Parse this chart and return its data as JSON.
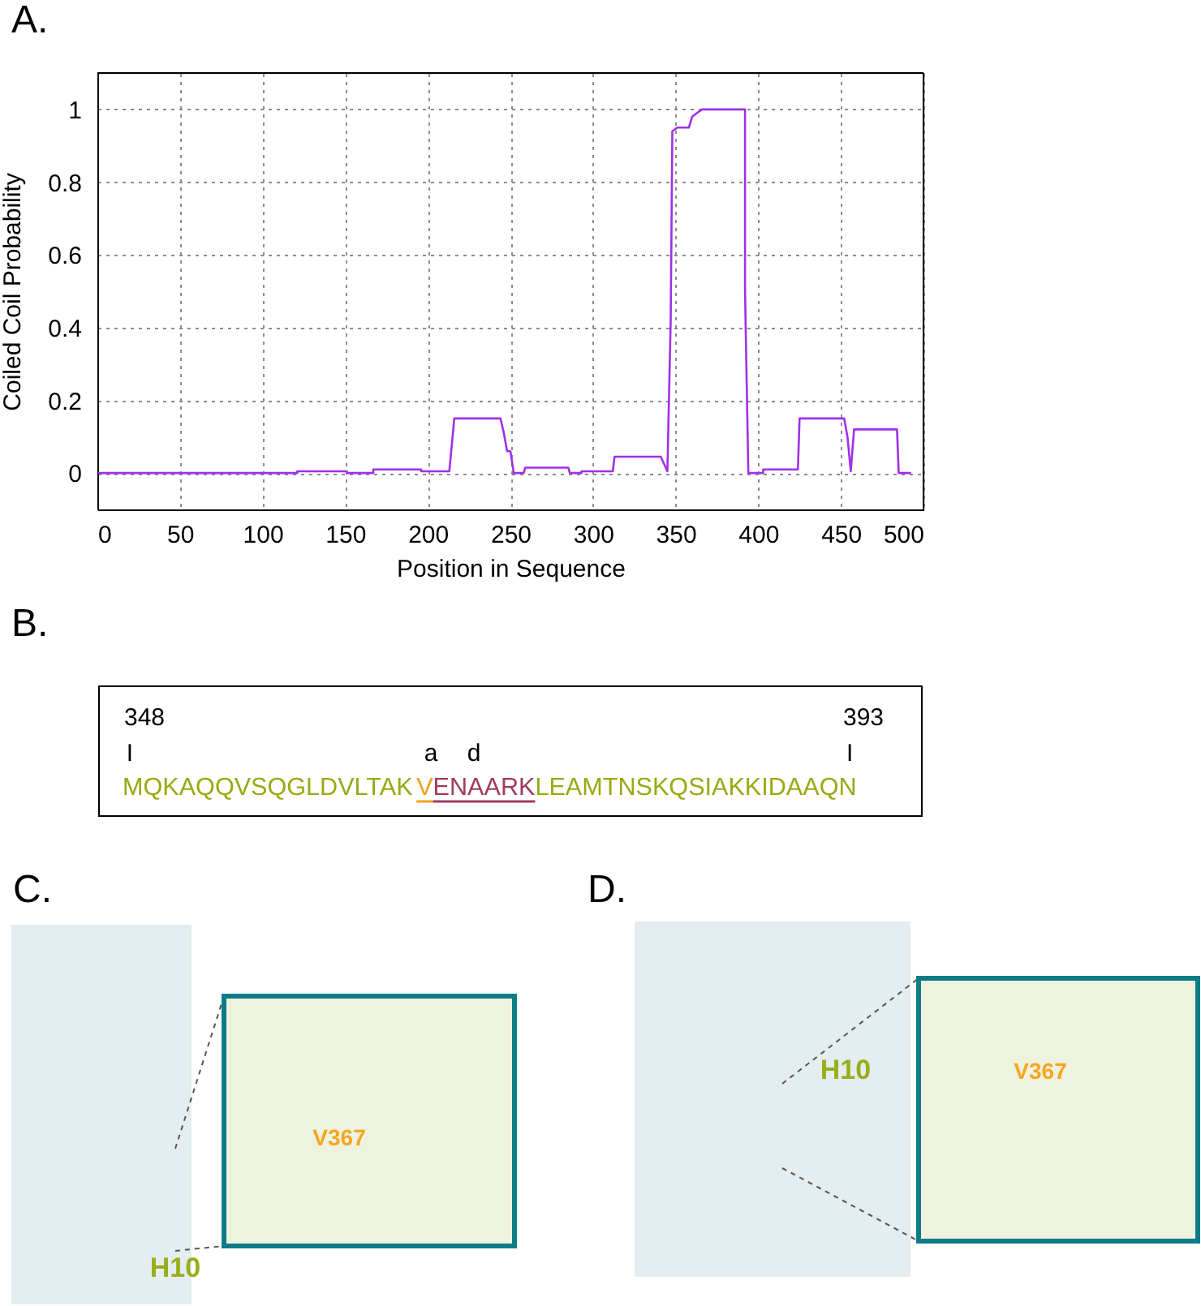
{
  "chart_data": {
    "type": "line",
    "xlabel": "Position in Sequence",
    "ylabel": "Coiled Coil Probability",
    "series": [
      {
        "color": "#a030e8",
        "x": [
          1,
          121,
          121,
          151,
          151,
          167,
          167,
          196,
          196,
          213,
          215,
          216,
          244,
          246,
          248,
          250,
          252,
          258,
          259,
          285,
          286,
          293,
          293,
          312,
          313,
          341,
          345,
          347,
          348,
          351,
          358,
          360,
          363,
          366,
          392,
          392,
          394,
          403,
          403,
          424,
          425,
          452,
          454,
          456,
          458,
          484,
          485,
          492
        ],
        "values": [
          0,
          0,
          0.005,
          0.005,
          0,
          0,
          0.01,
          0.01,
          0.005,
          0.005,
          0.1,
          0.15,
          0.15,
          0.11,
          0.06,
          0.06,
          0,
          0,
          0.015,
          0.015,
          0,
          0,
          0.005,
          0.005,
          0.045,
          0.045,
          0.005,
          0.42,
          0.94,
          0.95,
          0.95,
          0.98,
          0.99,
          1,
          1,
          0.5,
          0,
          0,
          0.01,
          0.01,
          0.15,
          0.15,
          0.1,
          0.005,
          0.12,
          0.12,
          0,
          0
        ]
      }
    ],
    "xlim": [
      0,
      500
    ],
    "ylim": [
      -0.1,
      1.1
    ],
    "xticks": [
      0,
      50,
      100,
      150,
      200,
      250,
      300,
      350,
      400,
      450,
      500
    ],
    "yticks": [
      0,
      0.2,
      0.4,
      0.6,
      0.8,
      1
    ],
    "grid": true,
    "marker": "none",
    "line_style": "solid",
    "annotations": [
      "A.",
      "B.",
      "348",
      "I",
      "a",
      "d",
      "393",
      "I",
      "MQKAQQVSQGLDVLTAK",
      "V",
      "ENAARK",
      "LEAMTNSKQSIAKKIDAAQN",
      "C.",
      "D.",
      "H10",
      "V367",
      "H10",
      "V367"
    ]
  }
}
